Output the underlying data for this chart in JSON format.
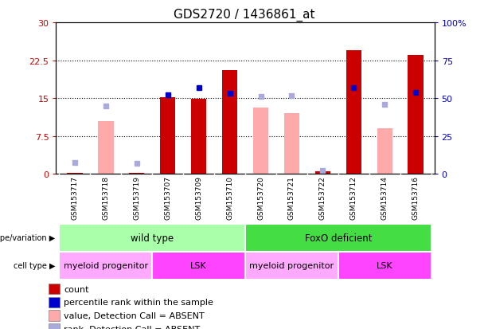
{
  "title": "GDS2720 / 1436861_at",
  "samples": [
    "GSM153717",
    "GSM153718",
    "GSM153719",
    "GSM153707",
    "GSM153709",
    "GSM153710",
    "GSM153720",
    "GSM153721",
    "GSM153722",
    "GSM153712",
    "GSM153714",
    "GSM153716"
  ],
  "count_values": [
    0.2,
    0,
    0.2,
    15.2,
    14.8,
    20.5,
    0,
    0,
    0.5,
    24.5,
    0,
    23.5
  ],
  "count_absent": [
    true,
    true,
    true,
    false,
    false,
    false,
    true,
    true,
    true,
    false,
    true,
    false
  ],
  "value_absent": [
    0,
    10.5,
    0,
    0,
    0,
    0,
    13.2,
    12.0,
    0,
    0,
    9.0,
    0
  ],
  "rank_present_pct": [
    7.5,
    0,
    7.0,
    52.0,
    57.0,
    53.0,
    51.0,
    51.5,
    0,
    57.0,
    46.0,
    54.0
  ],
  "rank_absent_pct": [
    0,
    45.0,
    0,
    0,
    0,
    0,
    0,
    0,
    2.5,
    0,
    0,
    0
  ],
  "ylim_left": [
    0,
    30
  ],
  "ylim_right": [
    0,
    100
  ],
  "yticks_left": [
    0,
    7.5,
    15,
    22.5,
    30
  ],
  "yticks_left_labels": [
    "0",
    "7.5",
    "15",
    "22.5",
    "30"
  ],
  "yticks_right": [
    0,
    25,
    50,
    75,
    100
  ],
  "yticks_right_labels": [
    "0",
    "25",
    "50",
    "75",
    "100%"
  ],
  "left_color": "#CC0000",
  "right_color": "#0000CC",
  "absent_bar_color": "#FFAAAA",
  "absent_rank_color": "#AAAADD",
  "bg_color": "#D0D0D0",
  "genotype_groups": [
    {
      "label": "wild type",
      "start": 0,
      "end": 5,
      "color": "#AAFFAA"
    },
    {
      "label": "FoxO deficient",
      "start": 6,
      "end": 11,
      "color": "#44DD44"
    }
  ],
  "cell_type_groups": [
    {
      "label": "myeloid progenitor",
      "start": 0,
      "end": 2,
      "color": "#FFAAFF"
    },
    {
      "label": "LSK",
      "start": 3,
      "end": 5,
      "color": "#FF44FF"
    },
    {
      "label": "myeloid progenitor",
      "start": 6,
      "end": 8,
      "color": "#FFAAFF"
    },
    {
      "label": "LSK",
      "start": 9,
      "end": 11,
      "color": "#FF44FF"
    }
  ],
  "legend_items": [
    {
      "label": "count",
      "color": "#CC0000"
    },
    {
      "label": "percentile rank within the sample",
      "color": "#0000CC"
    },
    {
      "label": "value, Detection Call = ABSENT",
      "color": "#FFAAAA"
    },
    {
      "label": "rank, Detection Call = ABSENT",
      "color": "#AAAADD"
    }
  ]
}
